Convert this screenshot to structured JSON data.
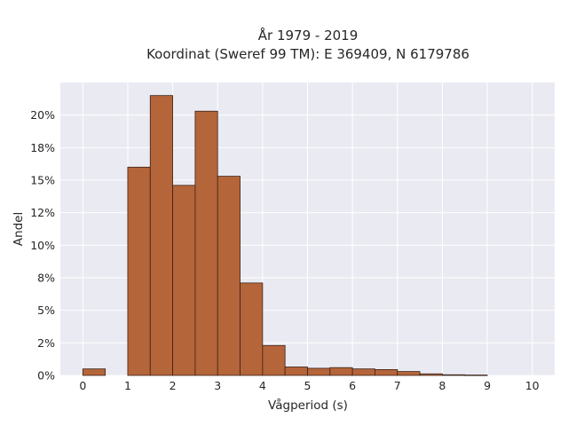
{
  "chart_data": {
    "type": "bar",
    "title_lines": [
      "År 1979 - 2019",
      "Koordinat (Sweref 99 TM): E 369409, N 6179786"
    ],
    "xlabel": "Vågperiod (s)",
    "ylabel": "Andel",
    "x_ticks": [
      "0",
      "1",
      "2",
      "3",
      "4",
      "5",
      "6",
      "7",
      "8",
      "9",
      "10"
    ],
    "y_ticks": [
      "0%",
      "2%",
      "5%",
      "8%",
      "10%",
      "12%",
      "15%",
      "18%",
      "20%"
    ],
    "y_tick_values": [
      0,
      2.5,
      5,
      7.5,
      10,
      12.5,
      15,
      17.5,
      20
    ],
    "xlim": [
      -0.5,
      10.5
    ],
    "ylim": [
      0,
      22.5
    ],
    "bin_width": 0.5,
    "bin_starts": [
      0,
      0.5,
      1,
      1.5,
      2,
      2.5,
      3,
      3.5,
      4,
      4.5,
      5,
      5.5,
      6,
      6.5,
      7,
      7.5,
      8,
      8.5,
      9
    ],
    "values": [
      0.5,
      0,
      16.0,
      21.5,
      14.6,
      20.3,
      15.3,
      7.1,
      2.3,
      0.65,
      0.55,
      0.6,
      0.5,
      0.45,
      0.3,
      0.12,
      0.05,
      0.03,
      0
    ],
    "bar_color": "#b5653a",
    "edge_color": "#3a2418",
    "background_color": "#eaeaf2",
    "grid": true
  }
}
